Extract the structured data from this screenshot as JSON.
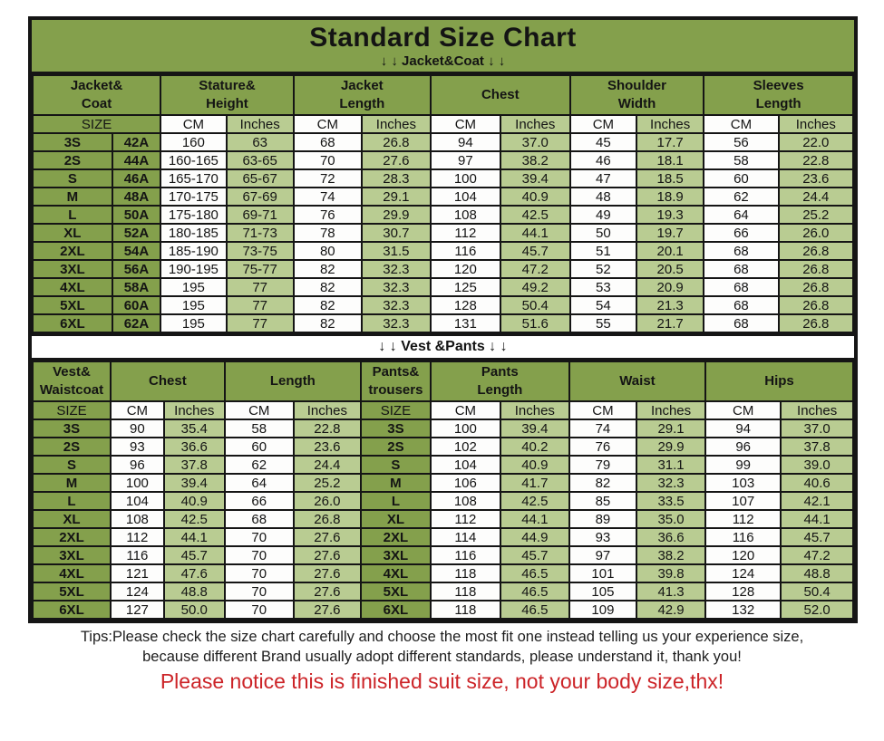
{
  "title": "Standard Size Chart",
  "units": {
    "size": "SIZE",
    "cm": "CM",
    "inches": "Inches"
  },
  "colors": {
    "olive_green": "#84a04c",
    "light_green": "#b9cc92",
    "white_cell": "#fdfdfc",
    "border_black": "#151515",
    "notice_red": "#cc2428"
  },
  "chart_data": [
    {
      "type": "table",
      "name": "jacket_coat",
      "section_label": "↓ ↓  Jacket&Coat  ↓ ↓",
      "group_headers": [
        "Jacket&\nCoat",
        "Stature&\nHeight",
        "Jacket\nLength",
        "Chest",
        "Shoulder\nWidth",
        "Sleeves\nLength"
      ],
      "sub_headers": [
        "SIZE",
        "CM",
        "Inches",
        "CM",
        "Inches",
        "CM",
        "Inches",
        "CM",
        "Inches",
        "CM",
        "Inches"
      ],
      "rows": [
        [
          "3S",
          "42A",
          "160",
          "63",
          "68",
          "26.8",
          "94",
          "37.0",
          "45",
          "17.7",
          "56",
          "22.0"
        ],
        [
          "2S",
          "44A",
          "160-165",
          "63-65",
          "70",
          "27.6",
          "97",
          "38.2",
          "46",
          "18.1",
          "58",
          "22.8"
        ],
        [
          "S",
          "46A",
          "165-170",
          "65-67",
          "72",
          "28.3",
          "100",
          "39.4",
          "47",
          "18.5",
          "60",
          "23.6"
        ],
        [
          "M",
          "48A",
          "170-175",
          "67-69",
          "74",
          "29.1",
          "104",
          "40.9",
          "48",
          "18.9",
          "62",
          "24.4"
        ],
        [
          "L",
          "50A",
          "175-180",
          "69-71",
          "76",
          "29.9",
          "108",
          "42.5",
          "49",
          "19.3",
          "64",
          "25.2"
        ],
        [
          "XL",
          "52A",
          "180-185",
          "71-73",
          "78",
          "30.7",
          "112",
          "44.1",
          "50",
          "19.7",
          "66",
          "26.0"
        ],
        [
          "2XL",
          "54A",
          "185-190",
          "73-75",
          "80",
          "31.5",
          "116",
          "45.7",
          "51",
          "20.1",
          "68",
          "26.8"
        ],
        [
          "3XL",
          "56A",
          "190-195",
          "75-77",
          "82",
          "32.3",
          "120",
          "47.2",
          "52",
          "20.5",
          "68",
          "26.8"
        ],
        [
          "4XL",
          "58A",
          "195",
          "77",
          "82",
          "32.3",
          "125",
          "49.2",
          "53",
          "20.9",
          "68",
          "26.8"
        ],
        [
          "5XL",
          "60A",
          "195",
          "77",
          "82",
          "32.3",
          "128",
          "50.4",
          "54",
          "21.3",
          "68",
          "26.8"
        ],
        [
          "6XL",
          "62A",
          "195",
          "77",
          "82",
          "32.3",
          "131",
          "51.6",
          "55",
          "21.7",
          "68",
          "26.8"
        ]
      ]
    },
    {
      "type": "table",
      "name": "vest_pants",
      "section_label": "↓ ↓  Vest &Pants ↓ ↓",
      "group_headers": [
        "Vest&\nWaistcoat",
        "Chest",
        "Length",
        "Pants&\ntrousers",
        "Pants\nLength",
        "Waist",
        "Hips"
      ],
      "sub_headers": [
        "SIZE",
        "CM",
        "Inches",
        "CM",
        "Inches",
        "SIZE",
        "CM",
        "Inches",
        "CM",
        "Inches",
        "CM",
        "Inches"
      ],
      "rows": [
        [
          "3S",
          "90",
          "35.4",
          "58",
          "22.8",
          "3S",
          "100",
          "39.4",
          "74",
          "29.1",
          "94",
          "37.0"
        ],
        [
          "2S",
          "93",
          "36.6",
          "60",
          "23.6",
          "2S",
          "102",
          "40.2",
          "76",
          "29.9",
          "96",
          "37.8"
        ],
        [
          "S",
          "96",
          "37.8",
          "62",
          "24.4",
          "S",
          "104",
          "40.9",
          "79",
          "31.1",
          "99",
          "39.0"
        ],
        [
          "M",
          "100",
          "39.4",
          "64",
          "25.2",
          "M",
          "106",
          "41.7",
          "82",
          "32.3",
          "103",
          "40.6"
        ],
        [
          "L",
          "104",
          "40.9",
          "66",
          "26.0",
          "L",
          "108",
          "42.5",
          "85",
          "33.5",
          "107",
          "42.1"
        ],
        [
          "XL",
          "108",
          "42.5",
          "68",
          "26.8",
          "XL",
          "112",
          "44.1",
          "89",
          "35.0",
          "112",
          "44.1"
        ],
        [
          "2XL",
          "112",
          "44.1",
          "70",
          "27.6",
          "2XL",
          "114",
          "44.9",
          "93",
          "36.6",
          "116",
          "45.7"
        ],
        [
          "3XL",
          "116",
          "45.7",
          "70",
          "27.6",
          "3XL",
          "116",
          "45.7",
          "97",
          "38.2",
          "120",
          "47.2"
        ],
        [
          "4XL",
          "121",
          "47.6",
          "70",
          "27.6",
          "4XL",
          "118",
          "46.5",
          "101",
          "39.8",
          "124",
          "48.8"
        ],
        [
          "5XL",
          "124",
          "48.8",
          "70",
          "27.6",
          "5XL",
          "118",
          "46.5",
          "105",
          "41.3",
          "128",
          "50.4"
        ],
        [
          "6XL",
          "127",
          "50.0",
          "70",
          "27.6",
          "6XL",
          "118",
          "46.5",
          "109",
          "42.9",
          "132",
          "52.0"
        ]
      ]
    }
  ],
  "footer": {
    "tips_line1": "Tips:Please check the size chart carefully and choose the most fit one instead telling us your experience size,",
    "tips_line2": "because different Brand usually adopt different standards, please understand it, thank you!",
    "notice_red": "Please notice this is finished suit size, not your body size,thx!"
  }
}
